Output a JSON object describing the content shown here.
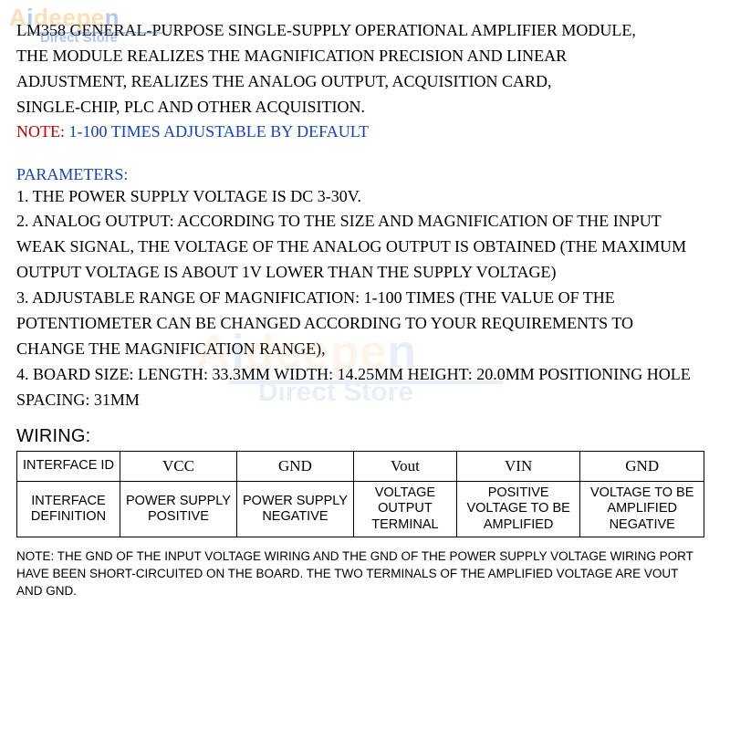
{
  "colors": {
    "text": "#000000",
    "blue": "#1443b5",
    "red": "#c00000",
    "border": "#000000",
    "wm_orange": "#f2a43a",
    "wm_blue": "#2b65c9"
  },
  "watermark": {
    "brand_pre": "A",
    "brand_i": "i",
    "brand_mid": "deepe",
    "brand_n": "n",
    "subtitle": "Direct Store"
  },
  "intro": {
    "l1": "LM358 GENERAL-PURPOSE SINGLE-SUPPLY OPERATIONAL AMPLIFIER MODULE,",
    "l2": "THE MODULE REALIZES THE MAGNIFICATION PRECISION AND LINEAR",
    "l3": "ADJUSTMENT, REALIZES THE ANALOG OUTPUT, ACQUISITION CARD,",
    "l4": "SINGLE-CHIP, PLC AND OTHER ACQUISITION."
  },
  "note": {
    "label": "NOTE: ",
    "text": "1-100 TIMES ADJUSTABLE BY DEFAULT"
  },
  "params_heading": "PARAMETERS:",
  "params": {
    "p1": "1. THE POWER SUPPLY VOLTAGE IS DC 3-30V.",
    "p2": "2. ANALOG OUTPUT: ACCORDING TO THE SIZE AND MAGNIFICATION OF THE INPUT WEAK SIGNAL, THE VOLTAGE OF THE ANALOG OUTPUT IS OBTAINED (THE MAXIMUM OUTPUT VOLTAGE IS ABOUT 1V LOWER THAN THE SUPPLY VOLTAGE)",
    "p3": "3. ADJUSTABLE RANGE OF MAGNIFICATION: 1-100 TIMES (THE VALUE OF THE POTENTIOMETER CAN BE CHANGED ACCORDING TO YOUR REQUIREMENTS TO CHANGE THE MAGNIFICATION RANGE),",
    "p4": "4. BOARD SIZE: LENGTH: 33.3MM WIDTH: 14.25MM HEIGHT: 20.0MM POSITIONING HOLE SPACING: 31MM"
  },
  "wiring_heading": "WIRING:",
  "wiring_table": {
    "columns": [
      "INTERFACE ID",
      "VCC",
      "GND",
      "Vout",
      "VIN",
      "GND"
    ],
    "row_label": "INTERFACE DEFINITION",
    "rows": [
      [
        "POWER SUPPLY POSITIVE",
        "POWER SUPPLY NEGATIVE",
        "VOLTAGE OUTPUT TERMINAL",
        "POSITIVE VOLTAGE TO BE AMPLIFIED",
        "VOLTAGE TO BE AMPLIFIED NEGATIVE"
      ]
    ]
  },
  "footnote": "NOTE: THE GND OF THE INPUT VOLTAGE WIRING AND THE GND OF THE POWER SUPPLY VOLTAGE WIRING PORT HAVE BEEN SHORT-CIRCUITED ON THE BOARD. THE TWO TERMINALS OF THE AMPLIFIED VOLTAGE ARE VOUT AND GND."
}
